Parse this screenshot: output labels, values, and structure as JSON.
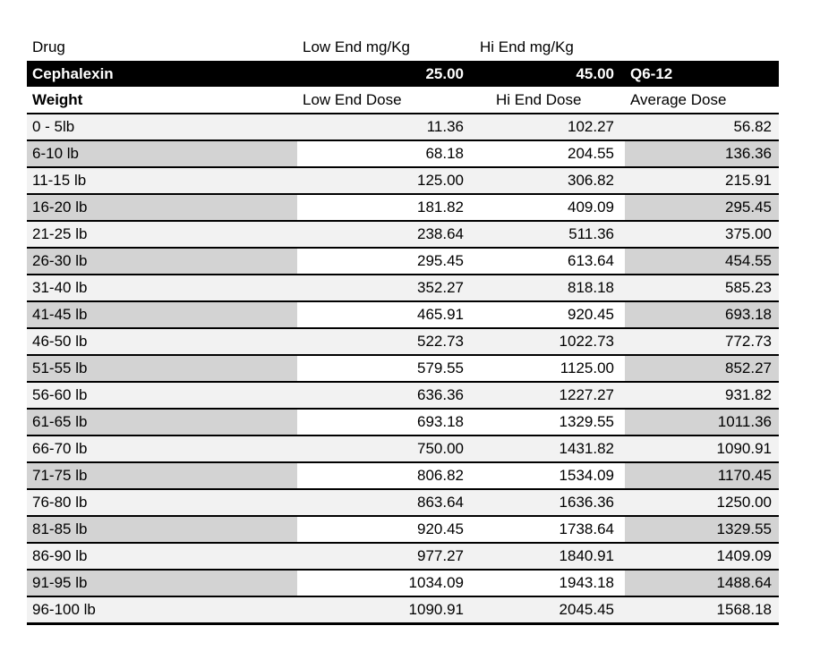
{
  "drug_header": {
    "drug_label": "Drug",
    "low_end_label": "Low End mg/Kg",
    "hi_end_label": "Hi End mg/Kg"
  },
  "drug_band": {
    "name": "Cephalexin",
    "low_end_mg_kg": "25.00",
    "hi_end_mg_kg": "45.00",
    "frequency": "Q6-12"
  },
  "dose_header": {
    "weight_label": "Weight",
    "low_end_label": "Low End Dose",
    "hi_end_label": "Hi End Dose",
    "average_label": "Average Dose"
  },
  "rows": [
    {
      "weight": "0 - 5lb",
      "low": "11.36",
      "hi": "102.27",
      "avg": "56.82"
    },
    {
      "weight": "6-10 lb",
      "low": "68.18",
      "hi": "204.55",
      "avg": "136.36"
    },
    {
      "weight": "11-15 lb",
      "low": "125.00",
      "hi": "306.82",
      "avg": "215.91"
    },
    {
      "weight": "16-20 lb",
      "low": "181.82",
      "hi": "409.09",
      "avg": "295.45"
    },
    {
      "weight": "21-25 lb",
      "low": "238.64",
      "hi": "511.36",
      "avg": "375.00"
    },
    {
      "weight": "26-30 lb",
      "low": "295.45",
      "hi": "613.64",
      "avg": "454.55"
    },
    {
      "weight": "31-40 lb",
      "low": "352.27",
      "hi": "818.18",
      "avg": "585.23"
    },
    {
      "weight": "41-45 lb",
      "low": "465.91",
      "hi": "920.45",
      "avg": "693.18"
    },
    {
      "weight": "46-50 lb",
      "low": "522.73",
      "hi": "1022.73",
      "avg": "772.73"
    },
    {
      "weight": "51-55 lb",
      "low": "579.55",
      "hi": "1125.00",
      "avg": "852.27"
    },
    {
      "weight": "56-60 lb",
      "low": "636.36",
      "hi": "1227.27",
      "avg": "931.82"
    },
    {
      "weight": "61-65 lb",
      "low": "693.18",
      "hi": "1329.55",
      "avg": "1011.36"
    },
    {
      "weight": "66-70 lb",
      "low": "750.00",
      "hi": "1431.82",
      "avg": "1090.91"
    },
    {
      "weight": "71-75 lb",
      "low": "806.82",
      "hi": "1534.09",
      "avg": "1170.45"
    },
    {
      "weight": "76-80 lb",
      "low": "863.64",
      "hi": "1636.36",
      "avg": "1250.00"
    },
    {
      "weight": "81-85 lb",
      "low": "920.45",
      "hi": "1738.64",
      "avg": "1329.55"
    },
    {
      "weight": "86-90 lb",
      "low": "977.27",
      "hi": "1840.91",
      "avg": "1409.09"
    },
    {
      "weight": "91-95 lb",
      "low": "1034.09",
      "hi": "1943.18",
      "avg": "1488.64"
    },
    {
      "weight": "96-100 lb",
      "low": "1090.91",
      "hi": "2045.45",
      "avg": "1568.18"
    }
  ],
  "colors": {
    "band_background": "#000000",
    "band_text": "#ffffff",
    "light_row": "#f2f2f2",
    "dark_cell": "#d3d3d3"
  }
}
